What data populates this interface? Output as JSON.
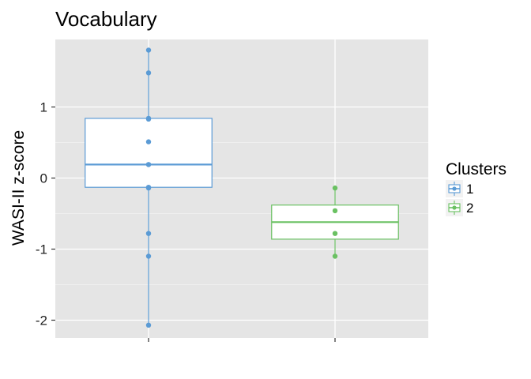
{
  "chart_data": {
    "type": "boxplot",
    "title": "Vocabulary",
    "xlabel": "",
    "ylabel": "WASI-II z-score",
    "ylim": [
      -2.25,
      1.95
    ],
    "yticks": [
      -2,
      -1,
      0,
      1
    ],
    "ytick_labels": [
      "-2",
      "-1",
      "0",
      "1"
    ],
    "grid": true,
    "legend": {
      "title": "Clusters",
      "position": "right",
      "entries": [
        "1",
        "2"
      ]
    },
    "series": [
      {
        "name": "1",
        "color": "#5b9bd5",
        "box": {
          "whisker_low": -2.07,
          "q1": -0.13,
          "median": 0.19,
          "q3": 0.84,
          "whisker_high": 1.8
        },
        "points": [
          1.8,
          1.48,
          0.84,
          0.83,
          0.51,
          0.19,
          0.19,
          -0.13,
          -0.14,
          -0.78,
          -1.1,
          -2.07
        ]
      },
      {
        "name": "2",
        "color": "#6ac162",
        "box": {
          "whisker_low": -1.1,
          "q1": -0.86,
          "median": -0.62,
          "q3": -0.38,
          "whisker_high": -0.14
        },
        "points": [
          -0.14,
          -0.46,
          -0.78,
          -1.1
        ]
      }
    ]
  }
}
